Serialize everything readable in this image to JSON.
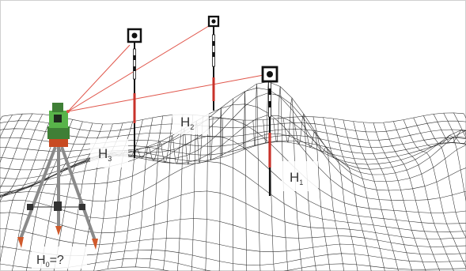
{
  "labels": {
    "h1": {
      "main": "H",
      "sub": "1"
    },
    "h2": {
      "main": "H",
      "sub": "2"
    },
    "h3": {
      "main": "H",
      "sub": "3"
    },
    "h0": {
      "main": "H",
      "sub": "0",
      "suffix": "=?"
    }
  },
  "colors": {
    "mesh": "#2b2b2b",
    "sight_line": "#e0554a",
    "rod_red": "#c8322a",
    "rod_black": "#111111",
    "instrument_green": "#58b44a",
    "tripod_gray": "#8a8a8a",
    "tripod_feet": "#d05a2c",
    "frame": "#cfcfcf"
  }
}
